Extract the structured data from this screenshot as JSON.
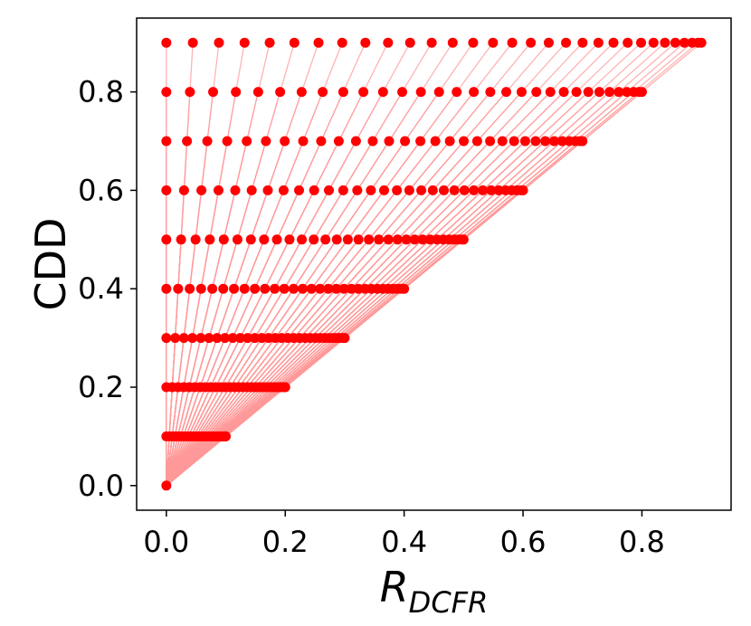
{
  "chart_data": {
    "type": "scatter",
    "title": "",
    "xlabel": "R",
    "xlabel_subscript": "DCFR",
    "ylabel": "CDD",
    "xlim": [
      -0.05,
      0.95
    ],
    "ylim": [
      -0.05,
      0.95
    ],
    "xticks": [
      0.0,
      0.2,
      0.4,
      0.6,
      0.8
    ],
    "yticks": [
      0.0,
      0.2,
      0.4,
      0.6,
      0.8
    ],
    "xtick_labels": [
      "0.0",
      "0.2",
      "0.4",
      "0.6",
      "0.8"
    ],
    "ytick_labels": [
      "0.0",
      "0.2",
      "0.4",
      "0.6",
      "0.8"
    ],
    "grid": false,
    "marker_color": "#ff0000",
    "line_color": "#ff9999",
    "origin": [
      0,
      0
    ],
    "cdd_levels": [
      0.1,
      0.2,
      0.3,
      0.4,
      0.5,
      0.6,
      0.7,
      0.8,
      0.9
    ],
    "r_max_by_level": [
      0.1,
      0.2,
      0.3,
      0.4,
      0.5,
      0.6,
      0.7,
      0.8,
      0.9
    ],
    "points_per_level": 30,
    "point_formula": "R = R_max * (1 - (1 - k/30)^1.5), k = 0..30, at each CDD level; each point connected to origin"
  }
}
